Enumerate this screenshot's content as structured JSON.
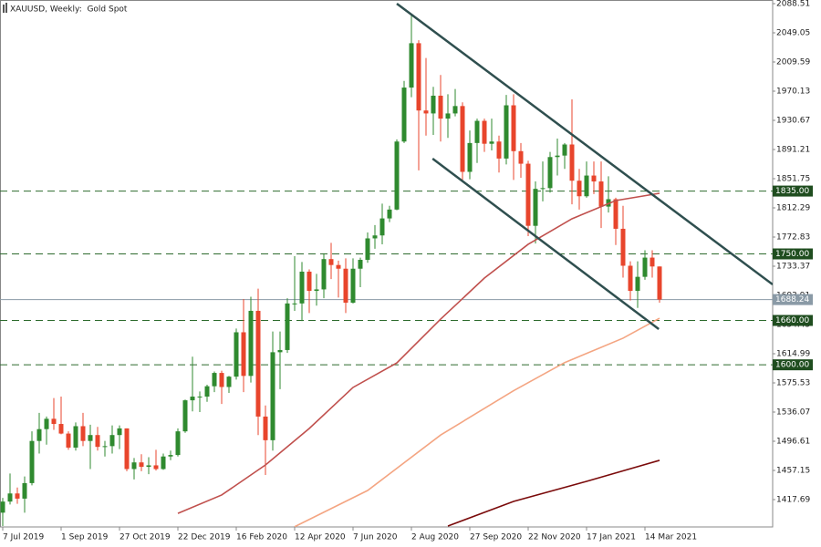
{
  "chart_data": {
    "type": "candlestick",
    "title": "XAUUSD, Weekly:  Gold Spot",
    "categories": [
      "7 Jul 2019",
      null,
      null,
      null,
      null,
      null,
      null,
      null,
      "1 Sep 2019",
      null,
      null,
      null,
      null,
      null,
      null,
      null,
      "27 Oct 2019",
      null,
      null,
      null,
      null,
      null,
      null,
      null,
      "22 Dec 2019",
      null,
      null,
      null,
      null,
      null,
      null,
      null,
      "16 Feb 2020",
      null,
      null,
      null,
      null,
      null,
      null,
      null,
      "12 Apr 2020",
      null,
      null,
      null,
      null,
      null,
      null,
      null,
      "7 Jun 2020",
      null,
      null,
      null,
      null,
      null,
      null,
      null,
      "2 Aug 2020",
      null,
      null,
      null,
      null,
      null,
      null,
      null,
      "27 Sep 2020",
      null,
      null,
      null,
      null,
      null,
      null,
      null,
      "22 Nov 2020",
      null,
      null,
      null,
      null,
      null,
      null,
      null,
      "17 Jan 2021",
      null,
      null,
      null,
      null,
      null,
      null,
      null,
      "14 Mar 2021",
      null,
      null
    ],
    "open": [
      1400,
      1415,
      1426,
      1419,
      1440,
      1497,
      1513,
      1527,
      1520,
      1507,
      1488,
      1517,
      1497,
      1505,
      1489,
      1490,
      1505,
      1514,
      1459,
      1468,
      1462,
      1464,
      1459,
      1476,
      1478,
      1510,
      1552,
      1557,
      1557,
      1571,
      1589,
      1570,
      1584,
      1644,
      1585,
      1673,
      1530,
      1498,
      1617,
      1620,
      1683,
      1683,
      1726,
      1700,
      1702,
      1743,
      1735,
      1730,
      1684,
      1730,
      1742,
      1771,
      1775,
      1798,
      1810,
      1902,
      1975,
      2035,
      1944,
      1940,
      1964,
      1933,
      1940,
      1950,
      1861,
      1900,
      1930,
      1899,
      1902,
      1879,
      1951,
      1889,
      1872,
      1788,
      1838,
      1839,
      1881,
      1883,
      1898,
      1849,
      1828,
      1856,
      1848,
      1814,
      1824,
      1784,
      1734,
      1700,
      1719,
      1745,
      1733
    ],
    "high": [
      1420,
      1453,
      1434,
      1449,
      1510,
      1535,
      1530,
      1555,
      1557,
      1510,
      1522,
      1535,
      1519,
      1516,
      1497,
      1518,
      1518,
      1514,
      1474,
      1479,
      1475,
      1485,
      1480,
      1484,
      1514,
      1553,
      1611,
      1564,
      1573,
      1591,
      1592,
      1585,
      1649,
      1689,
      1692,
      1703,
      1545,
      1645,
      1645,
      1690,
      1747,
      1739,
      1729,
      1723,
      1751,
      1765,
      1741,
      1744,
      1744,
      1745,
      1779,
      1789,
      1818,
      1815,
      1905,
      1984,
      2075,
      2039,
      2015,
      1976,
      1992,
      1966,
      1973,
      1955,
      1917,
      1933,
      1933,
      1933,
      1910,
      1965,
      1966,
      1900,
      1876,
      1848,
      1875,
      1888,
      1906,
      1900,
      1959,
      1865,
      1875,
      1875,
      1875,
      1855,
      1826,
      1815,
      1740,
      1740,
      1755,
      1755,
      1733
    ],
    "low": [
      1382,
      1411,
      1412,
      1400,
      1437,
      1480,
      1492,
      1512,
      1506,
      1485,
      1484,
      1490,
      1459,
      1484,
      1476,
      1480,
      1486,
      1456,
      1445,
      1456,
      1452,
      1457,
      1458,
      1471,
      1476,
      1508,
      1537,
      1536,
      1550,
      1563,
      1547,
      1562,
      1580,
      1563,
      1576,
      1505,
      1451,
      1484,
      1567,
      1616,
      1673,
      1659,
      1670,
      1680,
      1690,
      1716,
      1691,
      1670,
      1683,
      1705,
      1738,
      1757,
      1763,
      1793,
      1809,
      1900,
      1962,
      1863,
      1910,
      1911,
      1902,
      1907,
      1936,
      1848,
      1851,
      1873,
      1888,
      1890,
      1860,
      1871,
      1850,
      1853,
      1774,
      1764,
      1821,
      1833,
      1856,
      1865,
      1817,
      1810,
      1826,
      1831,
      1785,
      1806,
      1762,
      1718,
      1687,
      1677,
      1715,
      1718,
      1684
    ],
    "close": [
      1415,
      1426,
      1419,
      1440,
      1497,
      1513,
      1527,
      1520,
      1507,
      1488,
      1517,
      1497,
      1505,
      1489,
      1490,
      1505,
      1514,
      1459,
      1468,
      1462,
      1464,
      1459,
      1476,
      1478,
      1510,
      1552,
      1557,
      1557,
      1571,
      1589,
      1570,
      1584,
      1644,
      1585,
      1673,
      1530,
      1498,
      1617,
      1620,
      1683,
      1683,
      1726,
      1700,
      1702,
      1743,
      1735,
      1730,
      1684,
      1730,
      1742,
      1771,
      1775,
      1798,
      1810,
      1902,
      1975,
      2035,
      1944,
      1940,
      1964,
      1933,
      1940,
      1950,
      1861,
      1900,
      1930,
      1899,
      1902,
      1879,
      1951,
      1889,
      1872,
      1788,
      1838,
      1839,
      1881,
      1883,
      1898,
      1849,
      1828,
      1856,
      1848,
      1814,
      1824,
      1784,
      1734,
      1700,
      1719,
      1745,
      1733,
      1688.24
    ],
    "up_color": "#2f8a2f",
    "down_color": "#e8452c",
    "ylim": [
      1380.7,
      2093.44
    ],
    "yticks": [
      2088.51,
      2049.05,
      2009.59,
      1970.13,
      1930.67,
      1891.21,
      1851.75,
      1812.29,
      1772.83,
      1733.37,
      1693.91,
      1654.45,
      1614.99,
      1575.53,
      1536.07,
      1496.61,
      1457.15,
      1417.69
    ],
    "moving_averages": [
      {
        "color": "#c0504d",
        "x": [
          24,
          30,
          36,
          42,
          48,
          54,
          60,
          66,
          72,
          78,
          84,
          90
        ],
        "values": [
          1399,
          1423.9,
          1464.5,
          1513.9,
          1569.4,
          1602.6,
          1661.8,
          1717.3,
          1763,
          1797.5,
          1822.2,
          1832
        ]
      },
      {
        "color": "#f4a582",
        "x": [
          40,
          50,
          60,
          70,
          77,
          85,
          90
        ],
        "values": [
          1381,
          1430,
          1505,
          1565,
          1603,
          1636,
          1663
        ]
      },
      {
        "color": "#7a0a0a",
        "x": [
          61,
          70,
          80,
          90
        ],
        "values": [
          1381.9,
          1415.2,
          1442.4,
          1470.8
        ]
      }
    ],
    "trendlines": {
      "color": "#2f4f4f",
      "lines": [
        {
          "x": [
            54,
            105.5
          ],
          "values": [
            2088.5,
            1708.7
          ]
        },
        {
          "x": [
            58.9,
            89.9
          ],
          "values": [
            1878.9,
            1648.3
          ]
        }
      ]
    },
    "levels": {
      "color": "#2e6b2e",
      "items": [
        {
          "value": 1835,
          "label": "1835.00"
        },
        {
          "value": 1750,
          "label": "1750.00"
        },
        {
          "value": 1660,
          "label": "1660.00"
        },
        {
          "value": 1600,
          "label": "1600.00"
        }
      ]
    },
    "last_price": {
      "value": 1688.24,
      "label": "1688.24",
      "color": "#8a9aa6"
    }
  }
}
